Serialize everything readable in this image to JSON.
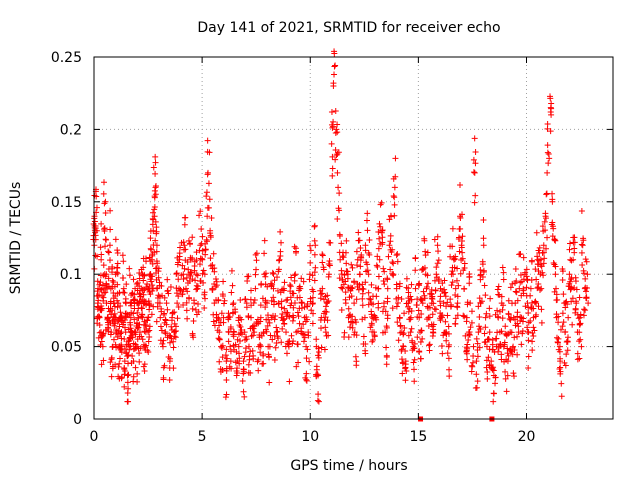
{
  "chart_data": {
    "type": "scatter",
    "title": "Day 141 of 2021, SRMTID for receiver echo",
    "xlabel": "GPS time / hours",
    "ylabel": "SRMTID / TECUs",
    "xlim": [
      0,
      24
    ],
    "ylim": [
      0,
      0.25
    ],
    "xticks": [
      0,
      5,
      10,
      15,
      20
    ],
    "yticks": [
      0,
      0.05,
      0.1,
      0.15,
      0.2,
      0.25
    ],
    "xtick_labels": [
      "0",
      "5",
      "10",
      "15",
      "20"
    ],
    "ytick_labels": [
      "0",
      "0.05",
      "0.1",
      "0.15",
      "0.2",
      "0.25"
    ],
    "grid": true,
    "marker": "+",
    "series": [
      {
        "name": "SRMTID",
        "color": "#ff0000",
        "x": [
          0.0,
          0.05,
          0.1,
          0.15,
          0.2,
          0.25,
          0.3,
          0.35,
          0.4,
          0.45,
          0.5,
          0.55,
          0.6,
          0.65,
          0.7,
          0.75,
          0.8,
          0.85,
          0.9,
          0.95,
          1.0,
          1.05,
          1.1,
          1.15,
          1.2,
          1.25,
          1.3,
          1.35,
          1.4,
          1.45,
          1.5,
          1.55,
          1.6,
          1.65,
          1.7,
          1.75,
          1.8,
          1.85,
          1.9,
          1.95,
          2.0,
          2.05,
          2.1,
          2.15,
          2.2,
          2.25,
          2.3,
          2.35,
          2.4,
          2.45,
          2.5,
          2.55,
          2.6,
          2.65,
          2.7,
          2.75,
          2.8,
          2.85,
          2.9,
          2.95,
          3.0,
          3.1,
          3.2,
          3.3,
          3.4,
          3.5,
          3.6,
          3.7,
          3.8,
          3.9,
          4.0,
          4.1,
          4.2,
          4.3,
          4.4,
          4.5,
          4.6,
          4.7,
          4.8,
          4.9,
          5.0,
          5.1,
          5.2,
          5.3,
          5.4,
          5.5,
          5.6,
          5.7,
          5.8,
          5.9,
          6.0,
          6.1,
          6.2,
          6.3,
          6.4,
          6.5,
          6.6,
          6.7,
          6.8,
          6.9,
          7.0,
          7.1,
          7.2,
          7.3,
          7.4,
          7.5,
          7.6,
          7.7,
          7.8,
          7.9,
          8.0,
          8.1,
          8.2,
          8.3,
          8.4,
          8.5,
          8.6,
          8.7,
          8.8,
          8.9,
          9.0,
          9.1,
          9.2,
          9.3,
          9.4,
          9.5,
          9.6,
          9.7,
          9.8,
          9.9,
          10.0,
          10.1,
          10.2,
          10.3,
          10.4,
          10.5,
          10.6,
          10.7,
          10.8,
          10.9,
          11.0,
          11.1,
          11.2,
          11.3,
          11.4,
          11.5,
          11.6,
          11.7,
          11.8,
          11.9,
          12.0,
          12.1,
          12.2,
          12.3,
          12.4,
          12.5,
          12.6,
          12.7,
          12.8,
          12.9,
          13.0,
          13.1,
          13.2,
          13.3,
          13.4,
          13.5,
          13.6,
          13.7,
          13.8,
          13.9,
          14.0,
          14.1,
          14.2,
          14.3,
          14.4,
          14.5,
          14.6,
          14.7,
          14.8,
          14.9,
          15.0,
          15.1,
          15.2,
          15.3,
          15.4,
          15.5,
          15.6,
          15.7,
          15.8,
          15.9,
          16.0,
          16.1,
          16.2,
          16.3,
          16.4,
          16.5,
          16.6,
          16.7,
          16.8,
          16.9,
          17.0,
          17.1,
          17.2,
          17.3,
          17.4,
          17.5,
          17.6,
          17.7,
          17.8,
          17.9,
          18.0,
          18.1,
          18.2,
          18.3,
          18.4,
          18.5,
          18.6,
          18.7,
          18.8,
          18.9,
          19.0,
          19.1,
          19.2,
          19.3,
          19.4,
          19.5,
          19.6,
          19.7,
          19.8,
          19.9,
          20.0,
          20.1,
          20.2,
          20.3,
          20.4,
          20.5,
          20.6,
          20.7,
          20.8,
          20.9,
          21.0,
          21.1,
          21.2,
          21.3,
          21.4,
          21.5,
          21.6,
          21.7,
          21.8,
          21.9,
          22.0,
          22.1,
          22.2,
          22.3,
          22.4,
          22.5,
          22.6,
          22.7,
          22.8
        ],
        "y": [
          0.12,
          0.14,
          0.13,
          0.09,
          0.08,
          0.07,
          0.11,
          0.06,
          0.05,
          0.09,
          0.15,
          0.1,
          0.08,
          0.07,
          0.12,
          0.06,
          0.09,
          0.05,
          0.08,
          0.07,
          0.06,
          0.1,
          0.08,
          0.05,
          0.07,
          0.06,
          0.05,
          0.09,
          0.04,
          0.07,
          0.06,
          0.03,
          0.05,
          0.08,
          0.06,
          0.07,
          0.04,
          0.09,
          0.06,
          0.05,
          0.07,
          0.08,
          0.06,
          0.09,
          0.07,
          0.1,
          0.08,
          0.05,
          0.06,
          0.09,
          0.07,
          0.08,
          0.1,
          0.11,
          0.09,
          0.13,
          0.16,
          0.14,
          0.12,
          0.09,
          0.08,
          0.07,
          0.05,
          0.06,
          0.08,
          0.04,
          0.07,
          0.06,
          0.08,
          0.09,
          0.11,
          0.1,
          0.12,
          0.09,
          0.1,
          0.11,
          0.08,
          0.1,
          0.09,
          0.12,
          0.11,
          0.1,
          0.14,
          0.17,
          0.13,
          0.09,
          0.08,
          0.07,
          0.06,
          0.05,
          0.07,
          0.04,
          0.06,
          0.05,
          0.08,
          0.06,
          0.03,
          0.05,
          0.07,
          0.04,
          0.06,
          0.08,
          0.05,
          0.07,
          0.06,
          0.09,
          0.05,
          0.07,
          0.06,
          0.1,
          0.08,
          0.05,
          0.07,
          0.09,
          0.06,
          0.08,
          0.11,
          0.07,
          0.09,
          0.06,
          0.05,
          0.08,
          0.07,
          0.1,
          0.06,
          0.09,
          0.08,
          0.07,
          0.05,
          0.06,
          0.1,
          0.08,
          0.12,
          0.05,
          0.03,
          0.07,
          0.09,
          0.06,
          0.08,
          0.1,
          0.19,
          0.23,
          0.2,
          0.16,
          0.11,
          0.09,
          0.08,
          0.1,
          0.07,
          0.09,
          0.08,
          0.06,
          0.11,
          0.1,
          0.09,
          0.07,
          0.12,
          0.1,
          0.08,
          0.06,
          0.07,
          0.09,
          0.11,
          0.13,
          0.08,
          0.06,
          0.09,
          0.12,
          0.1,
          0.16,
          0.09,
          0.07,
          0.06,
          0.05,
          0.04,
          0.08,
          0.06,
          0.07,
          0.05,
          0.09,
          0.07,
          0.06,
          0.08,
          0.1,
          0.09,
          0.07,
          0.08,
          0.06,
          0.1,
          0.12,
          0.09,
          0.07,
          0.08,
          0.06,
          0.05,
          0.1,
          0.11,
          0.09,
          0.08,
          0.14,
          0.12,
          0.09,
          0.07,
          0.06,
          0.08,
          0.05,
          0.17,
          0.04,
          0.06,
          0.08,
          0.12,
          0.07,
          0.05,
          0.06,
          0.04,
          0.03,
          0.05,
          0.07,
          0.06,
          0.08,
          0.05,
          0.04,
          0.06,
          0.07,
          0.05,
          0.08,
          0.06,
          0.09,
          0.07,
          0.1,
          0.08,
          0.06,
          0.09,
          0.07,
          0.08,
          0.11,
          0.1,
          0.09,
          0.12,
          0.14,
          0.18,
          0.21,
          0.15,
          0.1,
          0.07,
          0.05,
          0.04,
          0.08,
          0.06,
          0.07,
          0.1,
          0.09,
          0.11,
          0.08,
          0.06,
          0.07,
          0.12,
          0.09,
          0.1
        ]
      }
    ],
    "annotations": [
      {
        "type": "square-marker",
        "x": 15.1,
        "y": 0.0
      },
      {
        "type": "square-marker",
        "x": 18.4,
        "y": 0.0
      }
    ]
  }
}
